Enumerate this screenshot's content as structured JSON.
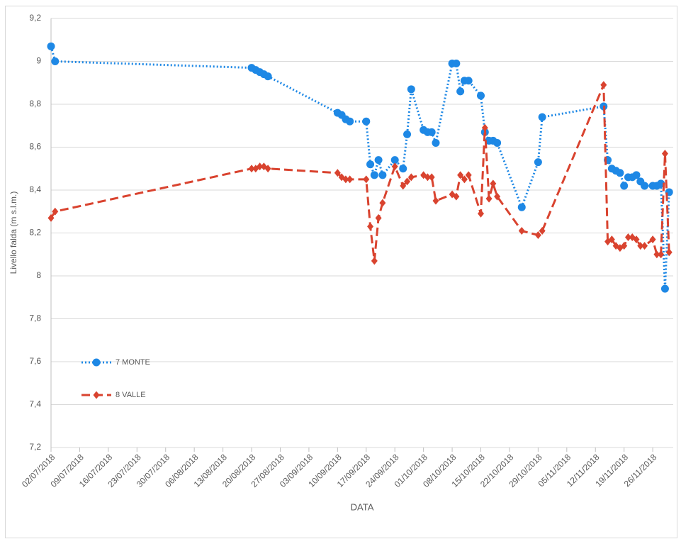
{
  "chart_data": {
    "type": "line",
    "x_label": "DATA",
    "y_label": "Livello falda (m s.l.m.)",
    "x": [
      "02/07/2018",
      "03/07/2018",
      "20/08/2018",
      "21/08/2018",
      "22/08/2018",
      "23/08/2018",
      "24/08/2018",
      "10/09/2018",
      "11/09/2018",
      "12/09/2018",
      "13/09/2018",
      "17/09/2018",
      "18/09/2018",
      "19/09/2018",
      "20/09/2018",
      "21/09/2018",
      "24/09/2018",
      "26/09/2018",
      "27/09/2018",
      "28/09/2018",
      "01/10/2018",
      "02/10/2018",
      "03/10/2018",
      "04/10/2018",
      "08/10/2018",
      "09/10/2018",
      "10/10/2018",
      "11/10/2018",
      "12/10/2018",
      "15/10/2018",
      "16/10/2018",
      "17/10/2018",
      "18/10/2018",
      "19/10/2018",
      "25/10/2018",
      "29/10/2018",
      "30/10/2018",
      "14/11/2018",
      "15/11/2018",
      "16/11/2018",
      "17/11/2018",
      "18/11/2018",
      "19/11/2018",
      "20/11/2018",
      "21/11/2018",
      "22/11/2018",
      "23/11/2018",
      "24/11/2018",
      "26/11/2018",
      "27/11/2018",
      "28/11/2018",
      "29/11/2018",
      "30/11/2018"
    ],
    "series": [
      {
        "name": "7 MONTE",
        "color": "#1e88e5",
        "marker": "circle",
        "dash": "dotted",
        "values": [
          9.07,
          9.0,
          8.97,
          8.96,
          8.95,
          8.94,
          8.93,
          8.76,
          8.75,
          8.73,
          8.72,
          8.72,
          8.52,
          8.47,
          8.54,
          8.47,
          8.54,
          8.5,
          8.66,
          8.87,
          8.68,
          8.67,
          8.67,
          8.62,
          8.99,
          8.99,
          8.86,
          8.91,
          8.91,
          8.84,
          8.67,
          8.63,
          8.63,
          8.62,
          8.32,
          8.53,
          8.74,
          8.79,
          8.54,
          8.5,
          8.49,
          8.48,
          8.42,
          8.46,
          8.46,
          8.47,
          8.44,
          8.42,
          8.42,
          8.42,
          8.43,
          7.94,
          8.39
        ]
      },
      {
        "name": "8 VALLE",
        "color": "#d9432f",
        "marker": "diamond",
        "dash": "dashed",
        "values": [
          8.27,
          8.3,
          8.5,
          8.5,
          8.51,
          8.51,
          8.5,
          8.48,
          8.46,
          8.45,
          8.45,
          8.45,
          8.23,
          8.07,
          8.27,
          8.34,
          8.51,
          8.42,
          8.44,
          8.46,
          8.47,
          8.46,
          8.46,
          8.35,
          8.38,
          8.37,
          8.47,
          8.45,
          8.47,
          8.29,
          8.69,
          8.36,
          8.43,
          8.37,
          8.21,
          8.19,
          8.21,
          8.89,
          8.16,
          8.17,
          8.14,
          8.13,
          8.14,
          8.18,
          8.18,
          8.17,
          8.14,
          8.14,
          8.17,
          8.1,
          8.1,
          8.57,
          8.11
        ]
      }
    ],
    "xlim": [
      "02/07/2018",
      "01/12/2018"
    ],
    "xticks": [
      "02/07/2018",
      "09/07/2018",
      "16/07/2018",
      "23/07/2018",
      "30/07/2018",
      "06/08/2018",
      "13/08/2018",
      "20/08/2018",
      "27/08/2018",
      "03/09/2018",
      "10/09/2018",
      "17/09/2018",
      "24/09/2018",
      "01/10/2018",
      "08/10/2018",
      "15/10/2018",
      "22/10/2018",
      "29/10/2018",
      "05/11/2018",
      "12/11/2018",
      "19/11/2018",
      "26/11/2018"
    ],
    "ylim": [
      7.2,
      9.2
    ],
    "yticks": [
      {
        "value": 7.2,
        "label": "7,2"
      },
      {
        "value": 7.4,
        "label": "7,4"
      },
      {
        "value": 7.6,
        "label": "7,6"
      },
      {
        "value": 7.8,
        "label": "7,8"
      },
      8,
      {
        "value": 8.2,
        "label": "8,2"
      },
      {
        "value": 8.4,
        "label": "8,4"
      },
      {
        "value": 8.6,
        "label": "8,6"
      },
      {
        "value": 8.8,
        "label": "8,8"
      },
      9,
      {
        "value": 9.2,
        "label": "9,2"
      }
    ],
    "grid": true,
    "legend": "lower left"
  }
}
